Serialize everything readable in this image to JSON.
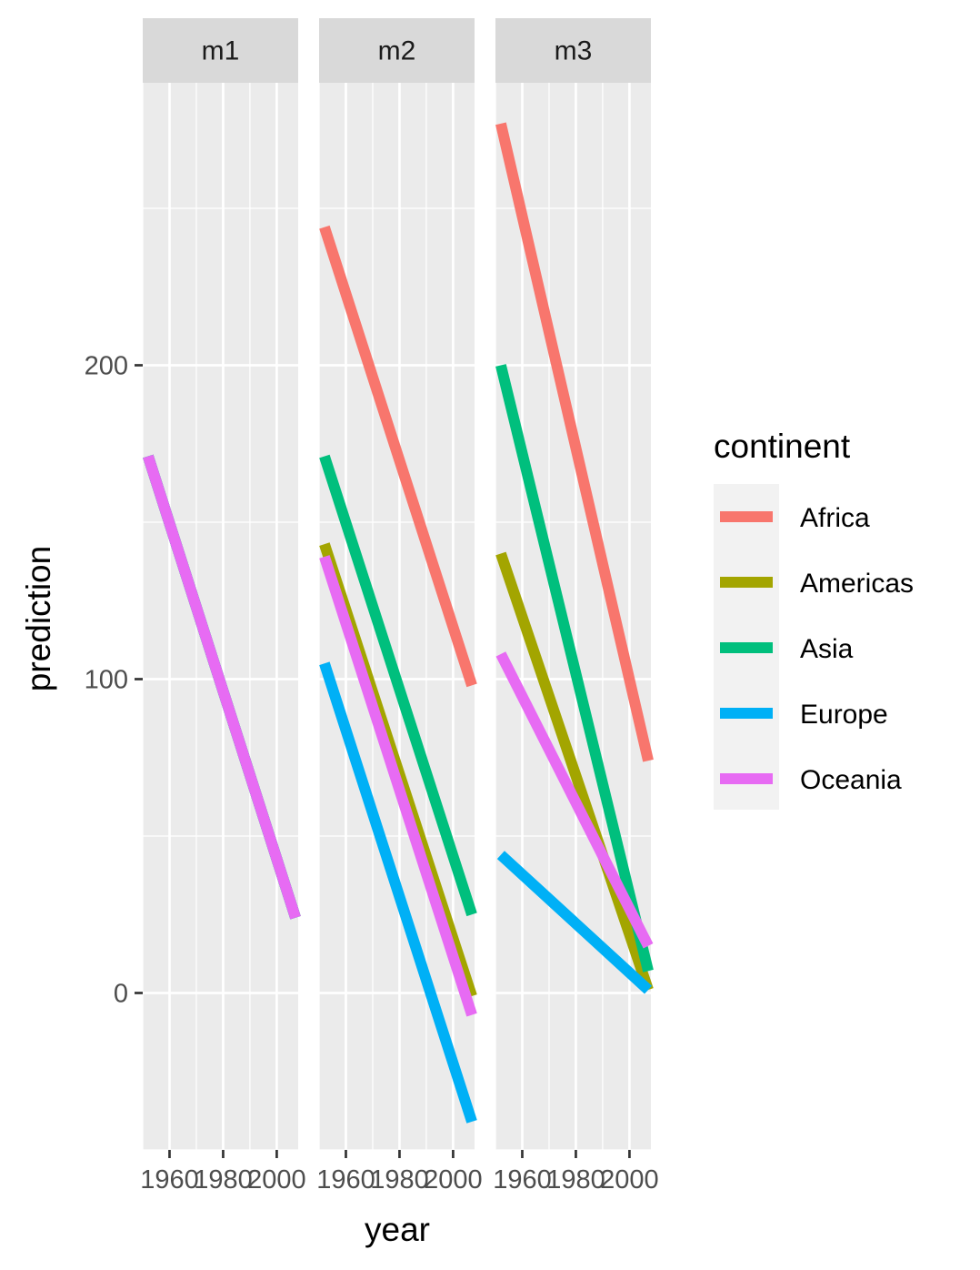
{
  "chart_data": {
    "type": "line",
    "xlabel": "year",
    "ylabel": "prediction",
    "xlim": [
      1950,
      2008
    ],
    "ylim": [
      -50,
      290
    ],
    "x_ticks": [
      1960,
      1980,
      2000
    ],
    "x_tick_labels": [
      "1960",
      "1980",
      "2000"
    ],
    "y_ticks": [
      0,
      100,
      200
    ],
    "y_tick_labels": [
      "0",
      "100",
      "200"
    ],
    "grid": true,
    "legend": {
      "title": "continent",
      "position": "right",
      "entries": [
        "Africa",
        "Americas",
        "Asia",
        "Europe",
        "Oceania"
      ]
    },
    "colors": {
      "Africa": "#F8766D",
      "Americas": "#A3A500",
      "Asia": "#00BF7D",
      "Europe": "#00B0F6",
      "Oceania": "#E76BF3"
    },
    "facets": [
      {
        "label": "m1",
        "series": [
          {
            "name": "Africa",
            "x": [
              1952,
              2007
            ],
            "y": [
              171,
              24
            ]
          },
          {
            "name": "Americas",
            "x": [
              1952,
              2007
            ],
            "y": [
              171,
              24
            ]
          },
          {
            "name": "Asia",
            "x": [
              1952,
              2007
            ],
            "y": [
              171,
              24
            ]
          },
          {
            "name": "Europe",
            "x": [
              1952,
              2007
            ],
            "y": [
              171,
              24
            ]
          },
          {
            "name": "Oceania",
            "x": [
              1952,
              2007
            ],
            "y": [
              171,
              24
            ]
          }
        ]
      },
      {
        "label": "m2",
        "series": [
          {
            "name": "Africa",
            "x": [
              1952,
              2007
            ],
            "y": [
              244,
              98
            ]
          },
          {
            "name": "Americas",
            "x": [
              1952,
              2007
            ],
            "y": [
              143,
              -1
            ]
          },
          {
            "name": "Asia",
            "x": [
              1952,
              2007
            ],
            "y": [
              171,
              25
            ]
          },
          {
            "name": "Europe",
            "x": [
              1952,
              2007
            ],
            "y": [
              105,
              -41
            ]
          },
          {
            "name": "Oceania",
            "x": [
              1952,
              2007
            ],
            "y": [
              139,
              -7
            ]
          }
        ]
      },
      {
        "label": "m3",
        "series": [
          {
            "name": "Africa",
            "x": [
              1952,
              2007
            ],
            "y": [
              277,
              74
            ]
          },
          {
            "name": "Americas",
            "x": [
              1952,
              2007
            ],
            "y": [
              140,
              1
            ]
          },
          {
            "name": "Asia",
            "x": [
              1952,
              2007
            ],
            "y": [
              200,
              7
            ]
          },
          {
            "name": "Europe",
            "x": [
              1952,
              2007
            ],
            "y": [
              44,
              1
            ]
          },
          {
            "name": "Oceania",
            "x": [
              1952,
              2007
            ],
            "y": [
              108,
              15
            ]
          }
        ]
      }
    ]
  }
}
